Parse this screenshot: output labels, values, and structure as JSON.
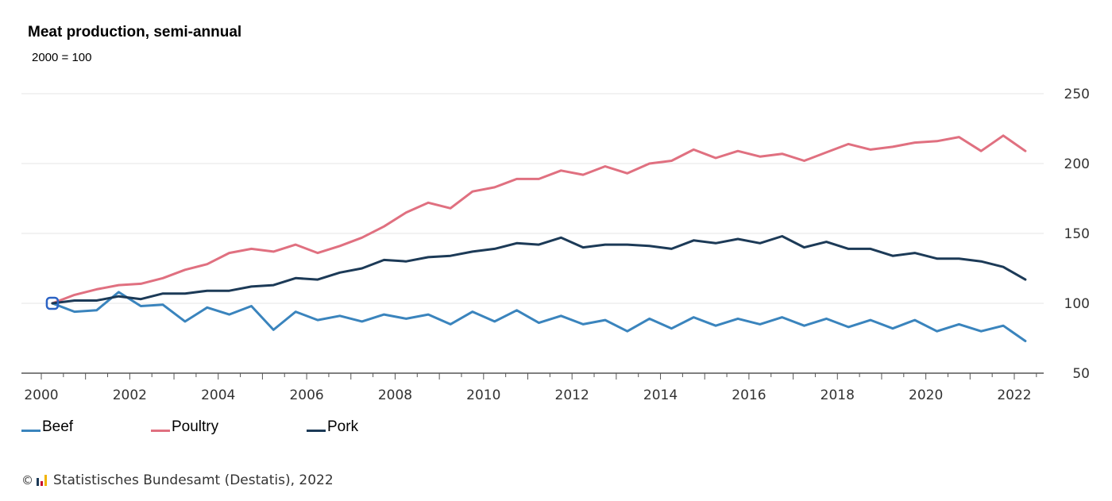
{
  "chart_data": {
    "type": "line",
    "title": "Meat production, semi-annual",
    "subtitle": "2000 = 100",
    "x_range": [
      2000,
      2022.5
    ],
    "ylim": [
      50,
      250
    ],
    "y_ticks": [
      50,
      100,
      150,
      200,
      250
    ],
    "x_ticks": [
      2000,
      2002,
      2004,
      2006,
      2008,
      2010,
      2012,
      2014,
      2016,
      2018,
      2020,
      2022
    ],
    "grid": true,
    "legend": "bottom-left",
    "x": [
      2000.25,
      2000.75,
      2001.25,
      2001.75,
      2002.25,
      2002.75,
      2003.25,
      2003.75,
      2004.25,
      2004.75,
      2005.25,
      2005.75,
      2006.25,
      2006.75,
      2007.25,
      2007.75,
      2008.25,
      2008.75,
      2009.25,
      2009.75,
      2010.25,
      2010.75,
      2011.25,
      2011.75,
      2012.25,
      2012.75,
      2013.25,
      2013.75,
      2014.25,
      2014.75,
      2015.25,
      2015.75,
      2016.25,
      2016.75,
      2017.25,
      2017.75,
      2018.25,
      2018.75,
      2019.25,
      2019.75,
      2020.25,
      2020.75,
      2021.25,
      2021.75,
      2022.25
    ],
    "series": [
      {
        "name": "Beef",
        "color": "#3a84bd",
        "values": [
          100,
          94,
          95,
          108,
          98,
          99,
          87,
          97,
          92,
          98,
          81,
          94,
          88,
          91,
          87,
          92,
          89,
          92,
          85,
          94,
          87,
          95,
          86,
          91,
          85,
          88,
          80,
          89,
          82,
          90,
          84,
          89,
          85,
          90,
          84,
          89,
          83,
          88,
          82,
          88,
          80,
          85,
          80,
          84,
          73
        ]
      },
      {
        "name": "Poultry",
        "color": "#e07080",
        "values": [
          100,
          106,
          110,
          113,
          114,
          118,
          124,
          128,
          136,
          139,
          137,
          142,
          136,
          141,
          147,
          155,
          165,
          172,
          168,
          180,
          183,
          189,
          189,
          195,
          192,
          198,
          193,
          200,
          202,
          210,
          204,
          209,
          205,
          207,
          202,
          208,
          214,
          210,
          212,
          215,
          216,
          219,
          209,
          220,
          209
        ]
      },
      {
        "name": "Pork",
        "color": "#1c3a57",
        "values": [
          100,
          102,
          102,
          105,
          103,
          107,
          107,
          109,
          109,
          112,
          113,
          118,
          117,
          122,
          125,
          131,
          130,
          133,
          134,
          137,
          139,
          143,
          142,
          147,
          140,
          142,
          142,
          141,
          139,
          145,
          143,
          146,
          143,
          148,
          140,
          144,
          139,
          139,
          134,
          136,
          132,
          132,
          130,
          126,
          117
        ]
      }
    ]
  },
  "source": {
    "copyright": "©",
    "text": "Statistisches Bundesamt (Destatis), 2022"
  }
}
